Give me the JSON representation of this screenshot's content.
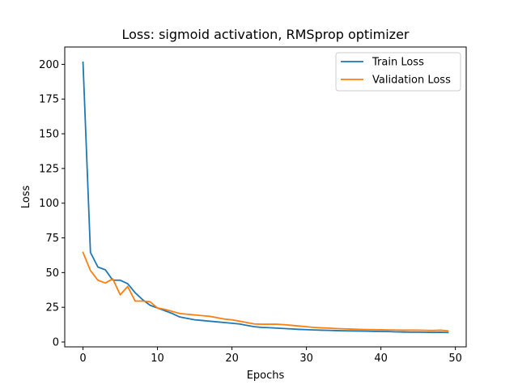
{
  "chart_data": {
    "type": "line",
    "title": "Loss: sigmoid activation, RMSprop optimizer",
    "xlabel": "Epochs",
    "ylabel": "Loss",
    "xlim": [
      -2.45,
      51.45
    ],
    "ylim": [
      -3.5,
      212.5
    ],
    "xticks": [
      0,
      10,
      20,
      30,
      40,
      50
    ],
    "yticks": [
      0,
      25,
      50,
      75,
      100,
      125,
      150,
      175,
      200
    ],
    "legend_position": "top-right",
    "grid": false,
    "x": [
      0,
      1,
      2,
      3,
      4,
      5,
      6,
      7,
      8,
      9,
      10,
      11,
      12,
      13,
      14,
      15,
      16,
      17,
      18,
      19,
      20,
      21,
      22,
      23,
      24,
      25,
      26,
      27,
      28,
      29,
      30,
      31,
      32,
      33,
      34,
      35,
      36,
      37,
      38,
      39,
      40,
      41,
      42,
      43,
      44,
      45,
      46,
      47,
      48,
      49
    ],
    "series": [
      {
        "name": "Train Loss",
        "color": "#1f77b4",
        "values": [
          201.5,
          64.5,
          54.0,
          52.0,
          44.5,
          44.5,
          42.0,
          35.5,
          30.5,
          26.5,
          24.5,
          22.5,
          20.5,
          18.0,
          17.0,
          16.0,
          15.5,
          15.0,
          14.5,
          14.0,
          13.5,
          13.0,
          12.0,
          11.0,
          10.5,
          10.3,
          10.0,
          9.7,
          9.4,
          9.1,
          8.9,
          8.7,
          8.5,
          8.4,
          8.2,
          8.1,
          8.0,
          7.9,
          7.8,
          7.7,
          7.6,
          7.5,
          7.3,
          7.2,
          7.1,
          7.1,
          7.0,
          6.9,
          7.0,
          6.8
        ]
      },
      {
        "name": "Validation Loss",
        "color": "#ff7f0e",
        "values": [
          64.5,
          51.5,
          44.5,
          42.5,
          45.5,
          34.0,
          40.0,
          29.5,
          29.5,
          29.0,
          24.5,
          23.5,
          22.0,
          20.5,
          20.0,
          19.5,
          19.0,
          18.5,
          17.5,
          16.5,
          16.0,
          15.0,
          14.0,
          13.0,
          12.8,
          12.8,
          12.8,
          12.5,
          12.0,
          11.5,
          11.0,
          10.5,
          10.2,
          10.0,
          9.7,
          9.5,
          9.3,
          9.1,
          9.0,
          8.9,
          8.8,
          8.7,
          8.6,
          8.5,
          8.5,
          8.5,
          8.4,
          8.3,
          8.5,
          8.0
        ]
      }
    ]
  }
}
